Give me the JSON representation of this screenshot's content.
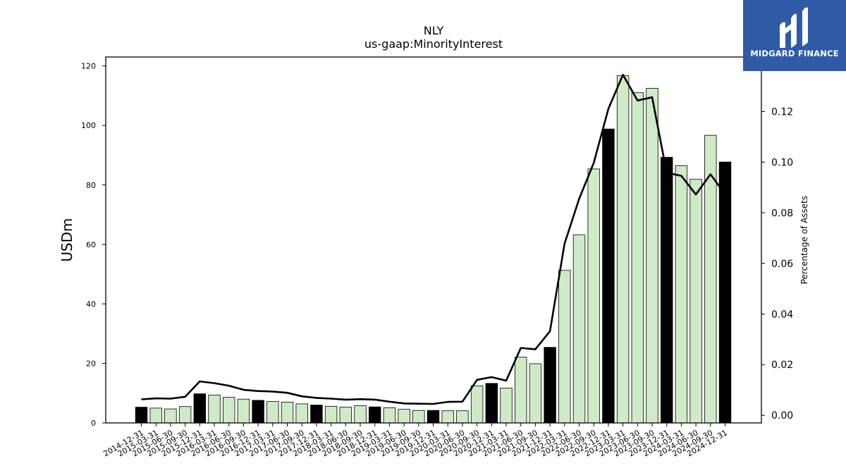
{
  "brand": {
    "name": "MIDGARD FINANCE",
    "bg_color": "#2f5aa6",
    "icon": "midgard-logo-icon"
  },
  "chart_data": {
    "type": "bar",
    "title": "NLY",
    "subtitle": "us-gaap:MinorityInterest",
    "ylabel": "USDm",
    "y2label": "Percentage of Assets",
    "ylim": [
      0,
      123
    ],
    "y2lim": [
      -0.003,
      0.1415
    ],
    "yticks": [
      0,
      20,
      40,
      60,
      80,
      100,
      120
    ],
    "y2ticks": [
      0.0,
      0.02,
      0.04,
      0.06,
      0.08,
      0.1,
      0.12
    ],
    "y2ticklabels": [
      "0.00",
      "0.02",
      "0.04",
      "0.06",
      "0.08",
      "0.10",
      "0.12"
    ],
    "bar_colors": {
      "annual": "#000000",
      "quarterly": "#cfeac6"
    },
    "line_color": "#000000",
    "categories": [
      "2014-12-31",
      "2015-03-31",
      "2015-06-30",
      "2015-09-30",
      "2015-12-31",
      "2016-03-31",
      "2016-06-30",
      "2016-09-30",
      "2016-12-31",
      "2017-03-31",
      "2017-06-30",
      "2017-09-30",
      "2017-12-31",
      "2018-03-31",
      "2018-06-30",
      "2018-09-30",
      "2018-12-31",
      "2019-03-31",
      "2019-06-30",
      "2019-09-30",
      "2019-12-31",
      "2020-03-31",
      "2020-06-30",
      "2020-09-30",
      "2020-12-31",
      "2021-03-31",
      "2021-06-30",
      "2021-09-30",
      "2021-12-31",
      "2022-03-31",
      "2022-06-30",
      "2022-09-30",
      "2022-12-31",
      "2023-03-31",
      "2023-06-30",
      "2023-09-30",
      "2023-12-31",
      "2024-03-31",
      "2024-06-30",
      "2024-09-30",
      "2024-12-31"
    ],
    "series": [
      {
        "values": [
          5.3,
          5.0,
          4.7,
          5.5,
          9.8,
          9.4,
          8.6,
          8.0,
          7.6,
          7.2,
          7.0,
          6.4,
          6.0,
          5.6,
          5.3,
          5.8,
          5.4,
          5.1,
          4.6,
          4.2,
          4.2,
          4.1,
          4.1,
          12.5,
          13.3,
          11.7,
          22.1,
          19.9,
          25.4,
          51.3,
          63.2,
          85.4,
          98.8,
          116.7,
          111.0,
          112.5,
          89.3,
          86.5,
          81.9,
          96.7,
          87.7
        ]
      },
      {
        "values": [
          0.0063,
          0.0067,
          0.0066,
          0.0073,
          0.0134,
          0.0127,
          0.0117,
          0.0101,
          0.0096,
          0.0094,
          0.0089,
          0.0075,
          0.0069,
          0.0066,
          0.0062,
          0.0064,
          0.0062,
          0.0054,
          0.0047,
          0.0046,
          0.0045,
          0.0053,
          0.0054,
          0.014,
          0.0151,
          0.0137,
          0.0266,
          0.0261,
          0.0332,
          0.0678,
          0.0855,
          0.0997,
          0.121,
          0.1345,
          0.1243,
          0.1256,
          0.0958,
          0.0946,
          0.0872,
          0.0952,
          0.0873
        ]
      }
    ]
  }
}
